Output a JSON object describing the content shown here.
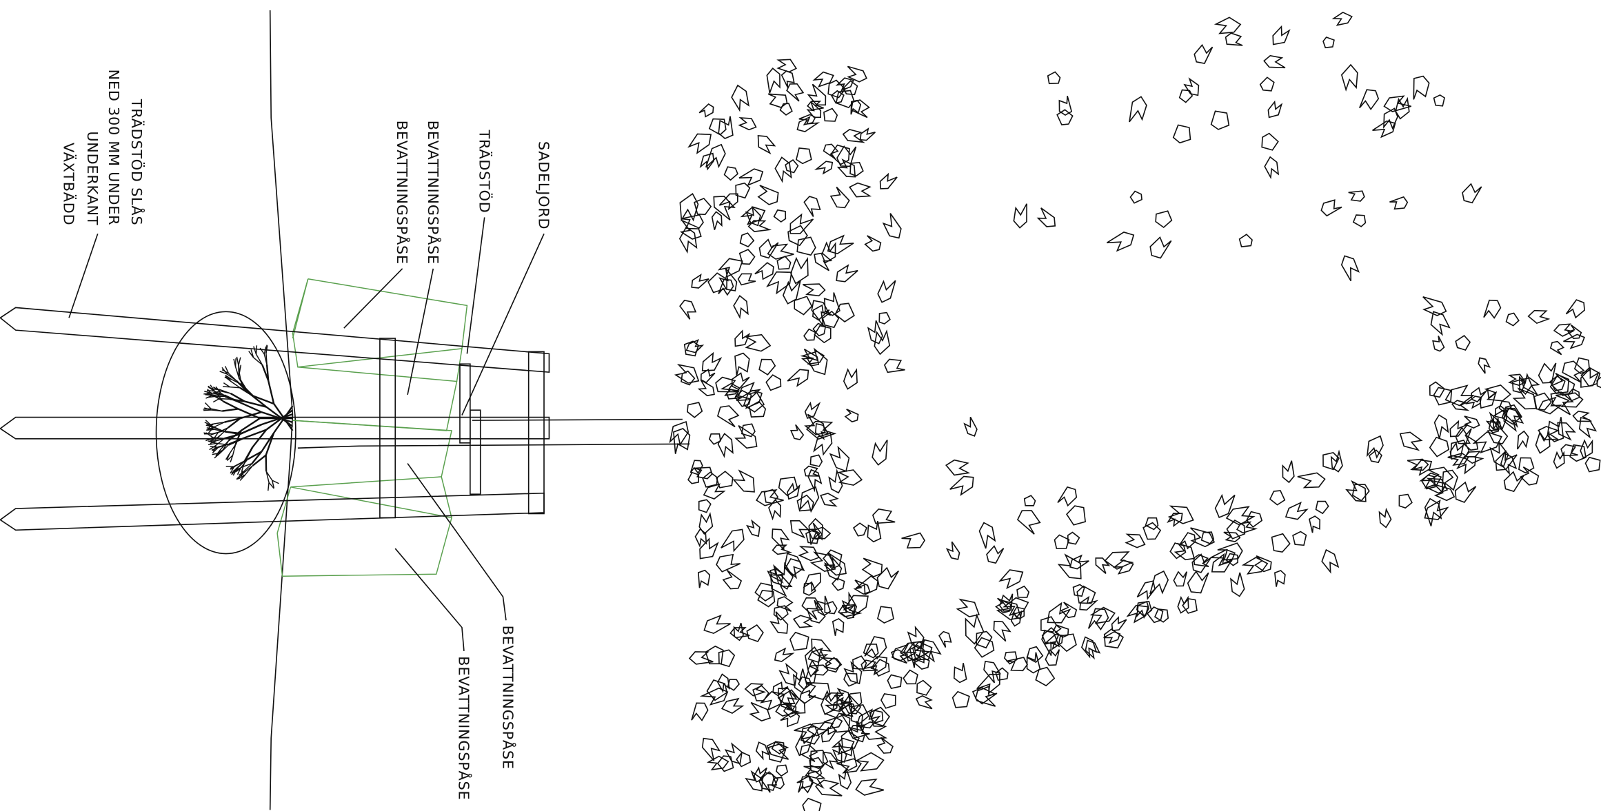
{
  "labels": {
    "stake_note": [
      "TRÄDSTÖD SLÅS",
      "NED 300 MM UNDER",
      "UNDERKANT",
      "VÄXTBÄDD"
    ],
    "bag_top_1": "BEVATTNINGSPÅSE",
    "bag_top_2": "BEVATTNINGSPÅSE",
    "stake": "TRÄDSTÖD",
    "soil": "SADELJORD",
    "bag_bottom_1": "BEVATTNINGSPÅSE",
    "bag_bottom_2": "BEVATTNINGSPÅSE"
  }
}
